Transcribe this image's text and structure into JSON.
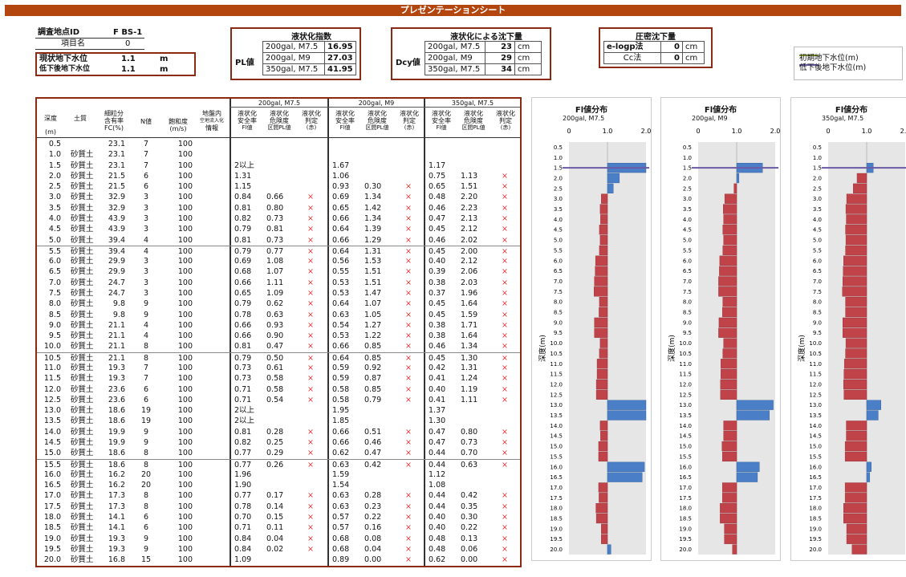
{
  "sheet_title": "プレゼンテーションシート",
  "site": {
    "id_label": "調査地点ID",
    "id_value": "F BS-1",
    "item_label": "項目名",
    "item_value": "0",
    "gw_now_label": "現状地下水位",
    "gw_now_value": "1.1",
    "gw_now_unit": "m",
    "gw_low_label": "低下後地下水位",
    "gw_low_value": "1.1",
    "gw_low_unit": "m"
  },
  "pl": {
    "title": "液状化指数",
    "label": "PL値",
    "rows": [
      {
        "case": "200gal, M7.5",
        "value": "16.95"
      },
      {
        "case": "200gal, M9",
        "value": "27.03"
      },
      {
        "case": "350gal, M7.5",
        "value": "41.95"
      }
    ]
  },
  "dcy": {
    "title": "液状化による沈下量",
    "label": "Dcy値",
    "rows": [
      {
        "case": "200gal, M7.5",
        "value": "23",
        "unit": "cm"
      },
      {
        "case": "200gal, M9",
        "value": "29",
        "unit": "cm"
      },
      {
        "case": "350gal, M7.5",
        "value": "34",
        "unit": "cm"
      }
    ]
  },
  "consol": {
    "title": "圧密沈下量",
    "rows": [
      {
        "method": "e-logp法",
        "value": "0",
        "unit": "cm"
      },
      {
        "method": "Cc法",
        "value": "0",
        "unit": "cm"
      }
    ]
  },
  "legend": {
    "items": [
      {
        "label": "初期地下水位(m)",
        "color": "#8aa832"
      },
      {
        "label": "低下後地下水位(m)",
        "color": "#6a5aa8"
      }
    ]
  },
  "table": {
    "head": {
      "depth": "深度",
      "depth_unit": "(m)",
      "soil": "土質",
      "fc1": "細粒分",
      "fc2": "含有率",
      "fc3": "FC(%)",
      "n": "N値",
      "sat1": "飽和度",
      "sat2": "(m/s)",
      "gi1": "地盤内",
      "gi2": "空地流入化",
      "gi3": "情報"
    },
    "cases": [
      "200gal, M7.5",
      "200gal, M9",
      "350gal, M7.5"
    ],
    "sub": {
      "fl1": "液状化",
      "fl2": "安全率",
      "fl3": "Fl値",
      "pl1": "液状化",
      "pl2": "危険度",
      "pl3": "区間PL値",
      "j1": "液状化",
      "j2": "判定",
      "j3": "(赤)"
    },
    "rows": [
      [
        "0.5",
        "",
        "23.1",
        "7",
        "100",
        "",
        "",
        "",
        "",
        "",
        "",
        "",
        "",
        "",
        ""
      ],
      [
        "1.0",
        "砂質土",
        "23.1",
        "7",
        "100",
        "",
        "",
        "",
        "",
        "",
        "",
        "",
        "",
        "",
        ""
      ],
      [
        "1.5",
        "砂質土",
        "23.1",
        "7",
        "100",
        "2以上",
        "",
        "",
        "1.67",
        "",
        "",
        "1.17",
        "",
        "",
        ""
      ],
      [
        "2.0",
        "砂質土",
        "21.5",
        "6",
        "100",
        "1.31",
        "",
        "",
        "1.06",
        "",
        "",
        "0.75",
        "1.13",
        "×",
        ""
      ],
      [
        "2.5",
        "砂質土",
        "21.5",
        "6",
        "100",
        "1.15",
        "",
        "",
        "0.93",
        "0.30",
        "×",
        "0.65",
        "1.51",
        "×",
        ""
      ],
      [
        "3.0",
        "砂質土",
        "32.9",
        "3",
        "100",
        "0.84",
        "0.66",
        "×",
        "0.69",
        "1.34",
        "×",
        "0.48",
        "2.20",
        "×",
        ""
      ],
      [
        "3.5",
        "砂質土",
        "32.9",
        "3",
        "100",
        "0.81",
        "0.80",
        "×",
        "0.65",
        "1.42",
        "×",
        "0.46",
        "2.23",
        "×",
        ""
      ],
      [
        "4.0",
        "砂質土",
        "43.9",
        "3",
        "100",
        "0.82",
        "0.73",
        "×",
        "0.66",
        "1.34",
        "×",
        "0.47",
        "2.13",
        "×",
        ""
      ],
      [
        "4.5",
        "砂質土",
        "43.9",
        "3",
        "100",
        "0.79",
        "0.81",
        "×",
        "0.64",
        "1.39",
        "×",
        "0.45",
        "2.12",
        "×",
        ""
      ],
      [
        "5.0",
        "砂質土",
        "39.4",
        "4",
        "100",
        "0.81",
        "0.73",
        "×",
        "0.66",
        "1.29",
        "×",
        "0.46",
        "2.02",
        "×",
        ""
      ],
      [
        "5.5",
        "砂質土",
        "39.4",
        "4",
        "100",
        "0.79",
        "0.77",
        "×",
        "0.64",
        "1.31",
        "×",
        "0.45",
        "2.00",
        "×",
        ""
      ],
      [
        "6.0",
        "砂質土",
        "29.9",
        "3",
        "100",
        "0.69",
        "1.08",
        "×",
        "0.56",
        "1.53",
        "×",
        "0.40",
        "2.12",
        "×",
        ""
      ],
      [
        "6.5",
        "砂質土",
        "29.9",
        "3",
        "100",
        "0.68",
        "1.07",
        "×",
        "0.55",
        "1.51",
        "×",
        "0.39",
        "2.06",
        "×",
        ""
      ],
      [
        "7.0",
        "砂質土",
        "24.7",
        "3",
        "100",
        "0.66",
        "1.11",
        "×",
        "0.53",
        "1.51",
        "×",
        "0.38",
        "2.03",
        "×",
        ""
      ],
      [
        "7.5",
        "砂質土",
        "24.7",
        "3",
        "100",
        "0.65",
        "1.09",
        "×",
        "0.53",
        "1.47",
        "×",
        "0.37",
        "1.96",
        "×",
        ""
      ],
      [
        "8.0",
        "砂質土",
        "9.8",
        "9",
        "100",
        "0.79",
        "0.62",
        "×",
        "0.64",
        "1.07",
        "×",
        "0.45",
        "1.64",
        "×",
        ""
      ],
      [
        "8.5",
        "砂質土",
        "9.8",
        "9",
        "100",
        "0.78",
        "0.63",
        "×",
        "0.63",
        "1.05",
        "×",
        "0.45",
        "1.59",
        "×",
        ""
      ],
      [
        "9.0",
        "砂質土",
        "21.1",
        "4",
        "100",
        "0.66",
        "0.93",
        "×",
        "0.54",
        "1.27",
        "×",
        "0.38",
        "1.71",
        "×",
        ""
      ],
      [
        "9.5",
        "砂質土",
        "21.1",
        "4",
        "100",
        "0.66",
        "0.90",
        "×",
        "0.53",
        "1.22",
        "×",
        "0.38",
        "1.64",
        "×",
        ""
      ],
      [
        "10.0",
        "砂質土",
        "21.1",
        "8",
        "100",
        "0.81",
        "0.47",
        "×",
        "0.66",
        "0.85",
        "×",
        "0.46",
        "1.34",
        "×",
        ""
      ],
      [
        "10.5",
        "砂質土",
        "21.1",
        "8",
        "100",
        "0.79",
        "0.50",
        "×",
        "0.64",
        "0.85",
        "×",
        "0.45",
        "1.30",
        "×",
        ""
      ],
      [
        "11.0",
        "砂質土",
        "19.3",
        "7",
        "100",
        "0.73",
        "0.61",
        "×",
        "0.59",
        "0.92",
        "×",
        "0.42",
        "1.31",
        "×",
        ""
      ],
      [
        "11.5",
        "砂質土",
        "19.3",
        "7",
        "100",
        "0.73",
        "0.58",
        "×",
        "0.59",
        "0.87",
        "×",
        "0.41",
        "1.24",
        "×",
        ""
      ],
      [
        "12.0",
        "砂質土",
        "23.6",
        "6",
        "100",
        "0.71",
        "0.58",
        "×",
        "0.58",
        "0.85",
        "×",
        "0.40",
        "1.19",
        "×",
        ""
      ],
      [
        "12.5",
        "砂質土",
        "23.6",
        "6",
        "100",
        "0.71",
        "0.54",
        "×",
        "0.58",
        "0.79",
        "×",
        "0.41",
        "1.11",
        "×",
        ""
      ],
      [
        "13.0",
        "砂質土",
        "18.6",
        "19",
        "100",
        "2以上",
        "",
        "",
        "1.95",
        "",
        "",
        "1.37",
        "",
        "",
        ""
      ],
      [
        "13.5",
        "砂質土",
        "18.6",
        "19",
        "100",
        "2以上",
        "",
        "",
        "1.85",
        "",
        "",
        "1.30",
        "",
        "",
        ""
      ],
      [
        "14.0",
        "砂質土",
        "19.9",
        "9",
        "100",
        "0.81",
        "0.28",
        "×",
        "0.66",
        "0.51",
        "×",
        "0.47",
        "0.80",
        "×",
        ""
      ],
      [
        "14.5",
        "砂質土",
        "19.9",
        "9",
        "100",
        "0.82",
        "0.25",
        "×",
        "0.66",
        "0.46",
        "×",
        "0.47",
        "0.73",
        "×",
        ""
      ],
      [
        "15.0",
        "砂質土",
        "18.6",
        "8",
        "100",
        "0.77",
        "0.29",
        "×",
        "0.62",
        "0.47",
        "×",
        "0.44",
        "0.70",
        "×",
        ""
      ],
      [
        "15.5",
        "砂質土",
        "18.6",
        "8",
        "100",
        "0.77",
        "0.26",
        "×",
        "0.63",
        "0.42",
        "×",
        "0.44",
        "0.63",
        "×",
        ""
      ],
      [
        "16.0",
        "砂質土",
        "16.2",
        "20",
        "100",
        "1.96",
        "",
        "",
        "1.59",
        "",
        "",
        "1.12",
        "",
        "",
        ""
      ],
      [
        "16.5",
        "砂質土",
        "16.2",
        "20",
        "100",
        "1.90",
        "",
        "",
        "1.54",
        "",
        "",
        "1.08",
        "",
        "",
        ""
      ],
      [
        "17.0",
        "砂質土",
        "17.3",
        "8",
        "100",
        "0.77",
        "0.17",
        "×",
        "0.63",
        "0.28",
        "×",
        "0.44",
        "0.42",
        "×",
        ""
      ],
      [
        "17.5",
        "砂質土",
        "17.3",
        "8",
        "100",
        "0.78",
        "0.14",
        "×",
        "0.63",
        "0.23",
        "×",
        "0.44",
        "0.35",
        "×",
        ""
      ],
      [
        "18.0",
        "砂質土",
        "14.1",
        "6",
        "100",
        "0.70",
        "0.15",
        "×",
        "0.57",
        "0.22",
        "×",
        "0.40",
        "0.30",
        "×",
        ""
      ],
      [
        "18.5",
        "砂質土",
        "14.1",
        "6",
        "100",
        "0.71",
        "0.11",
        "×",
        "0.57",
        "0.16",
        "×",
        "0.40",
        "0.22",
        "×",
        ""
      ],
      [
        "19.0",
        "砂質土",
        "19.3",
        "9",
        "100",
        "0.84",
        "0.04",
        "×",
        "0.68",
        "0.08",
        "×",
        "0.48",
        "0.13",
        "×",
        ""
      ],
      [
        "19.5",
        "砂質土",
        "19.3",
        "9",
        "100",
        "0.84",
        "0.02",
        "×",
        "0.68",
        "0.04",
        "×",
        "0.48",
        "0.06",
        "×",
        ""
      ],
      [
        "20.0",
        "砂質土",
        "16.8",
        "15",
        "100",
        "1.09",
        "",
        "",
        "0.89",
        "0.00",
        "×",
        "0.62",
        "0.00",
        "×",
        ""
      ]
    ]
  },
  "chart_data": [
    {
      "type": "bar",
      "title": "Fl値分布",
      "subtitle": "200gal, M7.5",
      "ylabel": "深度(m)",
      "xlim": [
        0,
        2
      ],
      "xticks": [
        "0",
        "1.0",
        "2.0"
      ],
      "gw_depth": 1.5,
      "x": [
        0.5,
        1.0,
        1.5,
        2.0,
        2.5,
        3.0,
        3.5,
        4.0,
        4.5,
        5.0,
        5.5,
        6.0,
        6.5,
        7.0,
        7.5,
        8.0,
        8.5,
        9.0,
        9.5,
        10.0,
        10.5,
        11.0,
        11.5,
        12.0,
        12.5,
        13.0,
        13.5,
        14.0,
        14.5,
        15.0,
        15.5,
        16.0,
        16.5,
        17.0,
        17.5,
        18.0,
        18.5,
        19.0,
        19.5,
        20.0
      ],
      "values": [
        null,
        null,
        2,
        1.31,
        1.15,
        0.84,
        0.81,
        0.82,
        0.79,
        0.81,
        0.79,
        0.69,
        0.68,
        0.66,
        0.65,
        0.79,
        0.78,
        0.66,
        0.66,
        0.81,
        0.79,
        0.73,
        0.73,
        0.71,
        0.71,
        2,
        2,
        0.81,
        0.82,
        0.77,
        0.77,
        1.96,
        1.9,
        0.77,
        0.78,
        0.7,
        0.71,
        0.84,
        0.84,
        1.09
      ]
    },
    {
      "type": "bar",
      "title": "Fl値分布",
      "subtitle": "200gal, M9",
      "ylabel": "深度(m)",
      "xlim": [
        0,
        2
      ],
      "xticks": [
        "0",
        "1.0",
        "2.0"
      ],
      "gw_depth": 1.5,
      "x": [
        0.5,
        1.0,
        1.5,
        2.0,
        2.5,
        3.0,
        3.5,
        4.0,
        4.5,
        5.0,
        5.5,
        6.0,
        6.5,
        7.0,
        7.5,
        8.0,
        8.5,
        9.0,
        9.5,
        10.0,
        10.5,
        11.0,
        11.5,
        12.0,
        12.5,
        13.0,
        13.5,
        14.0,
        14.5,
        15.0,
        15.5,
        16.0,
        16.5,
        17.0,
        17.5,
        18.0,
        18.5,
        19.0,
        19.5,
        20.0
      ],
      "values": [
        null,
        null,
        1.67,
        1.06,
        0.93,
        0.69,
        0.65,
        0.66,
        0.64,
        0.66,
        0.64,
        0.56,
        0.55,
        0.53,
        0.53,
        0.64,
        0.63,
        0.54,
        0.53,
        0.66,
        0.64,
        0.59,
        0.59,
        0.58,
        0.58,
        1.95,
        1.85,
        0.66,
        0.66,
        0.62,
        0.63,
        1.59,
        1.54,
        0.63,
        0.63,
        0.57,
        0.57,
        0.68,
        0.68,
        0.89
      ]
    },
    {
      "type": "bar",
      "title": "Fl値分布",
      "subtitle": "350gal, M7.5",
      "ylabel": "深度(m)",
      "xlim": [
        0,
        2
      ],
      "xticks": [
        "0",
        "1.0",
        "2.0"
      ],
      "gw_depth": 1.5,
      "x": [
        0.5,
        1.0,
        1.5,
        2.0,
        2.5,
        3.0,
        3.5,
        4.0,
        4.5,
        5.0,
        5.5,
        6.0,
        6.5,
        7.0,
        7.5,
        8.0,
        8.5,
        9.0,
        9.5,
        10.0,
        10.5,
        11.0,
        11.5,
        12.0,
        12.5,
        13.0,
        13.5,
        14.0,
        14.5,
        15.0,
        15.5,
        16.0,
        16.5,
        17.0,
        17.5,
        18.0,
        18.5,
        19.0,
        19.5,
        20.0
      ],
      "values": [
        null,
        null,
        1.17,
        0.75,
        0.65,
        0.48,
        0.46,
        0.47,
        0.45,
        0.46,
        0.45,
        0.4,
        0.39,
        0.38,
        0.37,
        0.45,
        0.45,
        0.38,
        0.38,
        0.46,
        0.45,
        0.42,
        0.41,
        0.4,
        0.41,
        1.37,
        1.3,
        0.47,
        0.47,
        0.44,
        0.44,
        1.12,
        1.08,
        0.44,
        0.44,
        0.4,
        0.4,
        0.48,
        0.48,
        0.62
      ]
    }
  ]
}
